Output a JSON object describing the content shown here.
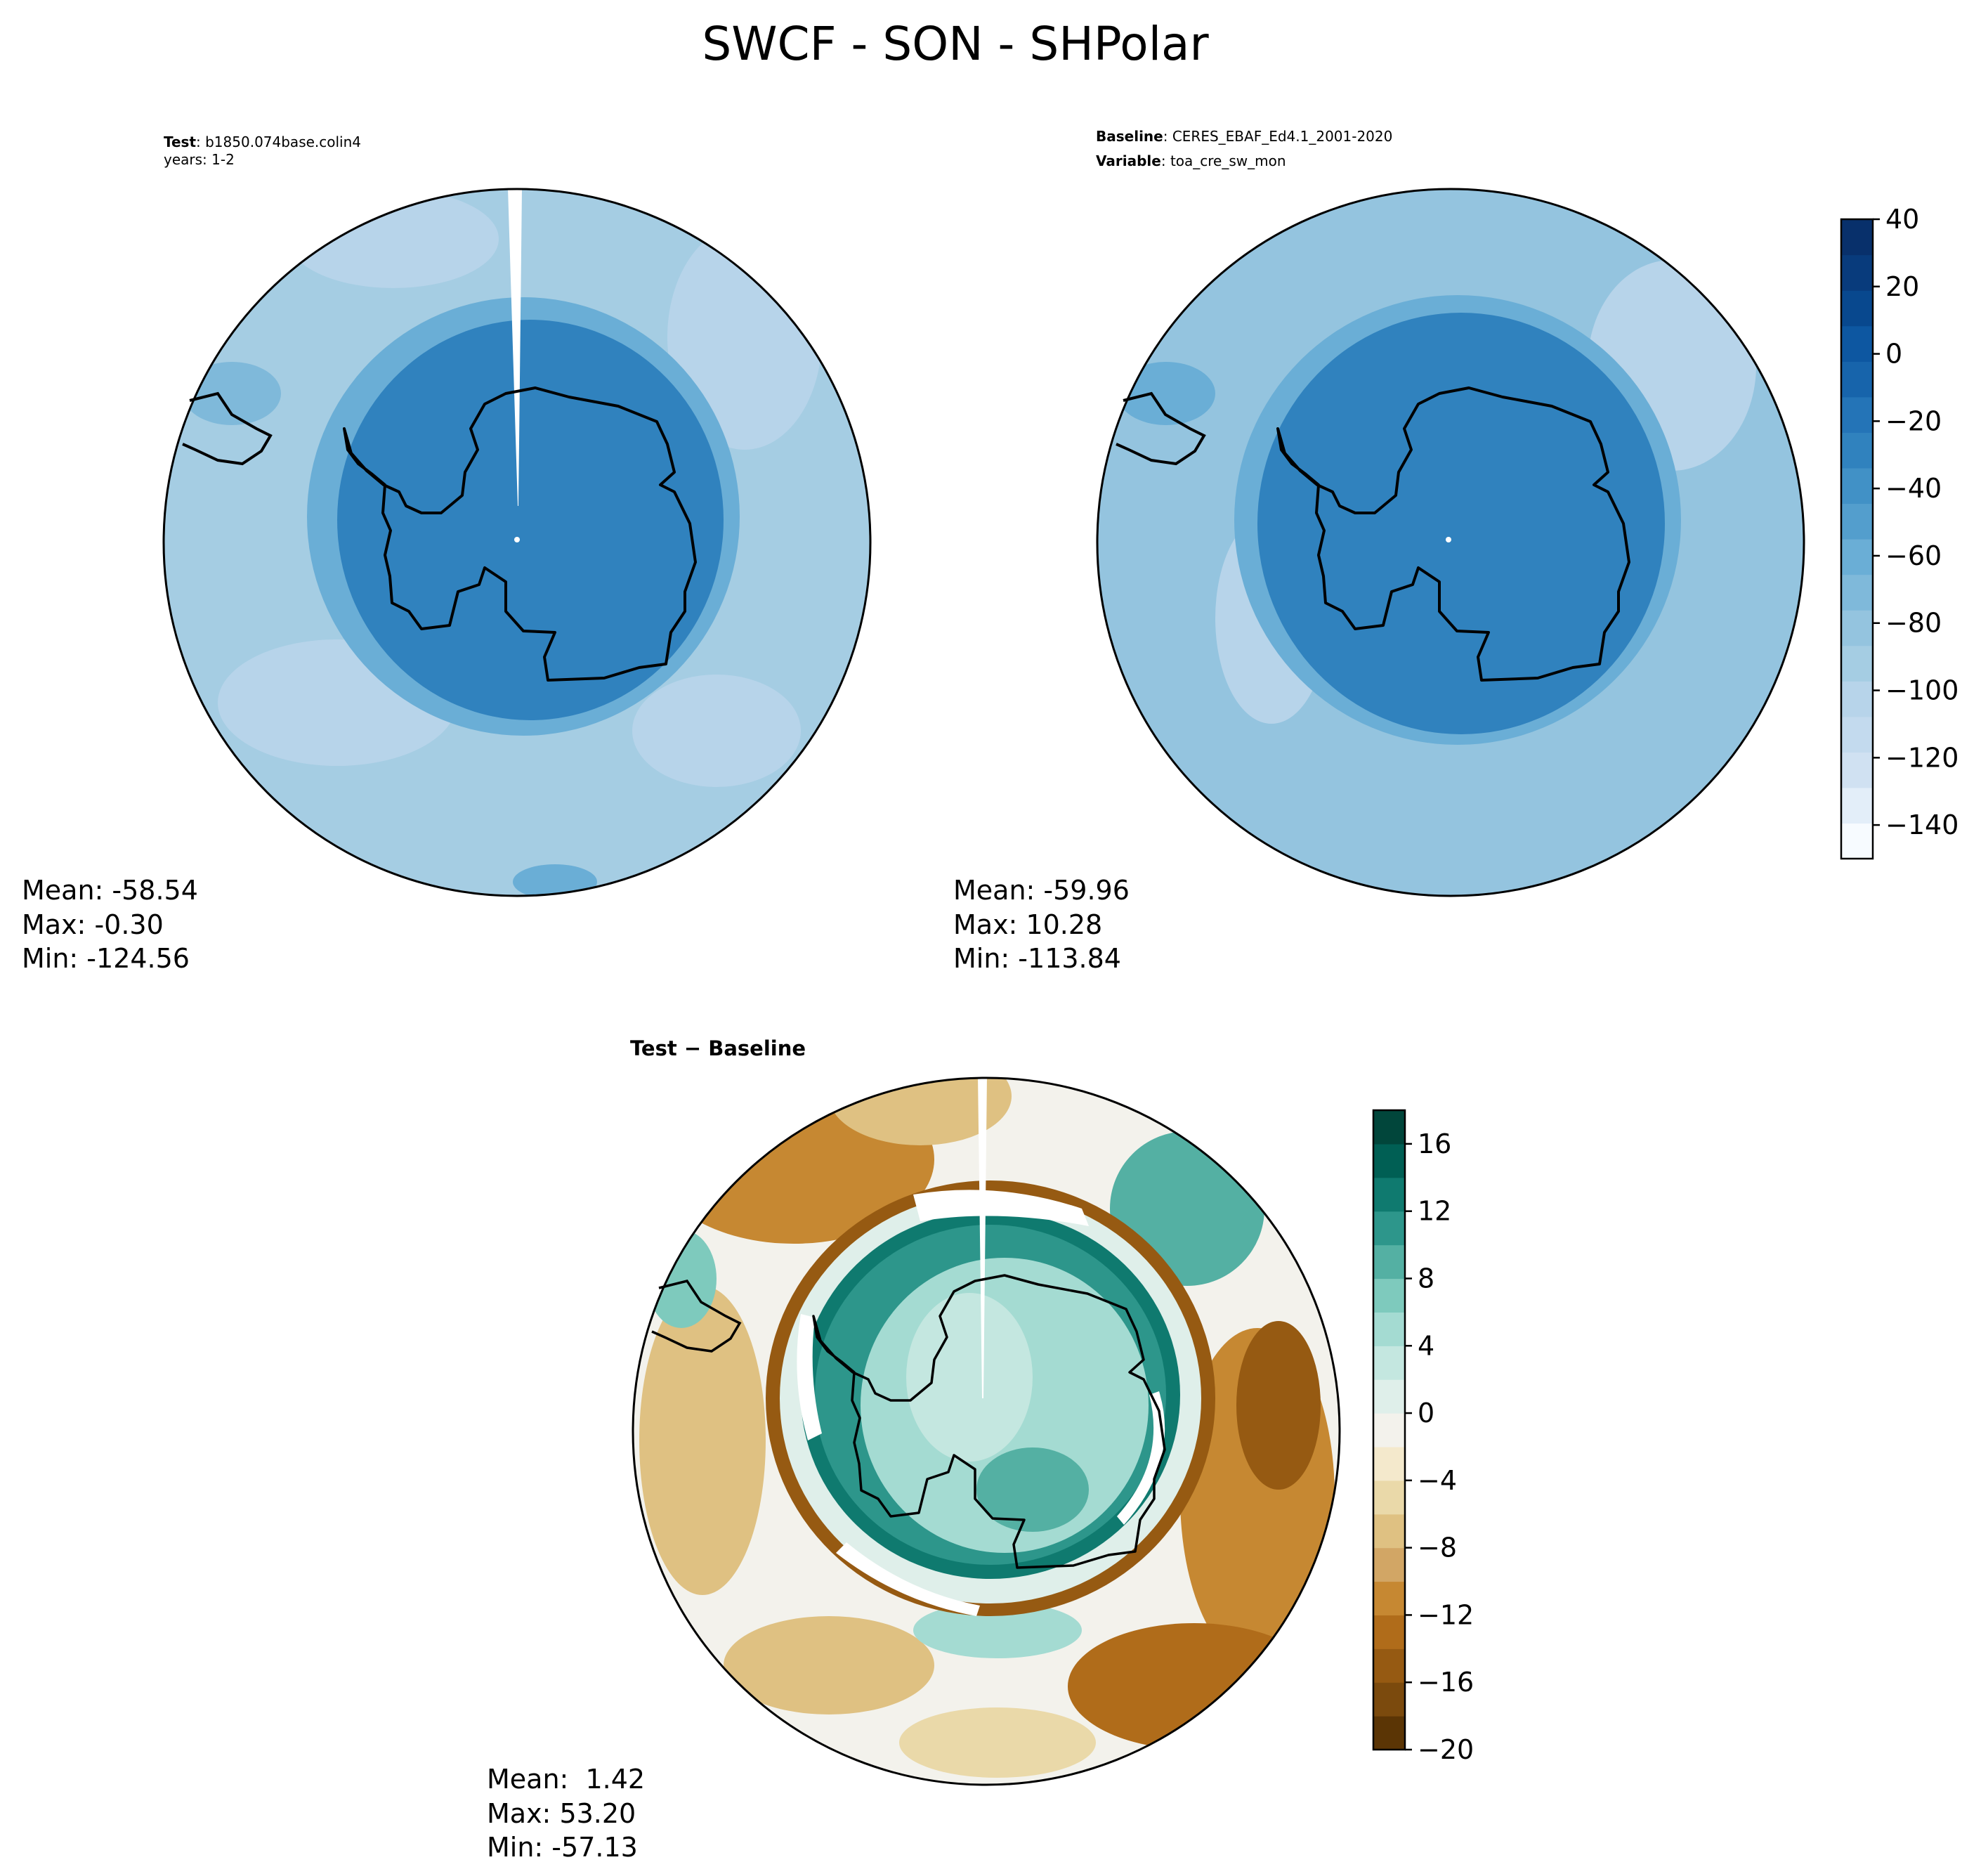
{
  "chart_data": {
    "title": "SWCF - SON - SHPolar",
    "type": "heatmap",
    "projection": "South polar stereographic",
    "panels": [
      {
        "id": "test",
        "header": [
          {
            "bold": "Test",
            "text": ": b1850.074base.colin4"
          },
          {
            "bold": "",
            "text": "years: 1-2"
          }
        ],
        "stats": {
          "mean": "Mean: -58.54",
          "max": "Max: -0.30",
          "min": "Min: -124.56"
        },
        "field_levels": {
          "antarctica_cloud": -30,
          "ring": -65,
          "ocean": -90,
          "ocean_light": -105
        }
      },
      {
        "id": "baseline",
        "header": [
          {
            "bold": "Baseline",
            "text": ": CERES_EBAF_Ed4.1_2001-2020"
          },
          {
            "bold": "Variable",
            "text": ": toa_cre_sw_mon"
          }
        ],
        "stats": {
          "mean": "Mean: -59.96",
          "max": "Max: 10.28",
          "min": "Min: -113.84"
        },
        "colorbar": {
          "min": -150,
          "max": 40,
          "ticks": [
            40,
            20,
            0,
            -20,
            -40,
            -60,
            -80,
            -100,
            -120,
            -140
          ],
          "tick_labels": [
            "40",
            "20",
            "0",
            "−20",
            "−40",
            "−60",
            "−80",
            "−100",
            "−120",
            "−140"
          ]
        },
        "field_levels": {
          "antarctica_cloud": -30,
          "ring": -60,
          "ocean": -85,
          "ocean_light": -100
        }
      },
      {
        "id": "diff",
        "header": [
          {
            "bold": "Test − Baseline",
            "text": ""
          }
        ],
        "stats": {
          "mean": "Mean:  1.42",
          "max": "Max: 53.20",
          "min": "Min: -57.13"
        },
        "colorbar": {
          "min": -20,
          "max": 18,
          "ticks": [
            16,
            12,
            8,
            4,
            0,
            -4,
            -8,
            -12,
            -16,
            -20
          ],
          "tick_labels": [
            "16",
            "12",
            "8",
            "4",
            "0",
            "−4",
            "−8",
            "−12",
            "−16",
            "−20"
          ]
        }
      }
    ],
    "colormaps": {
      "swcf": [
        "#f7fbff",
        "#e3eef9",
        "#d0e1f2",
        "#c3daee",
        "#b7d4ea",
        "#a5cde3",
        "#94c4df",
        "#7fb9da",
        "#6aaed6",
        "#539ecd",
        "#4191c6",
        "#3082be",
        "#2474b7",
        "#1764ab",
        "#0d57a1",
        "#08488e",
        "#083b7c",
        "#08306b"
      ],
      "diff": [
        "#5b3505",
        "#7b4a0d",
        "#965a12",
        "#b06c1a",
        "#c68832",
        "#d2a665",
        "#dfc182",
        "#ead9a9",
        "#f4e9cc",
        "#f3f2ec",
        "#dfefea",
        "#c4e7e0",
        "#a4dbd2",
        "#7ecabd",
        "#54b0a3",
        "#2d968b",
        "#0f7a6f",
        "#005f54",
        "#01463b"
      ]
    }
  }
}
